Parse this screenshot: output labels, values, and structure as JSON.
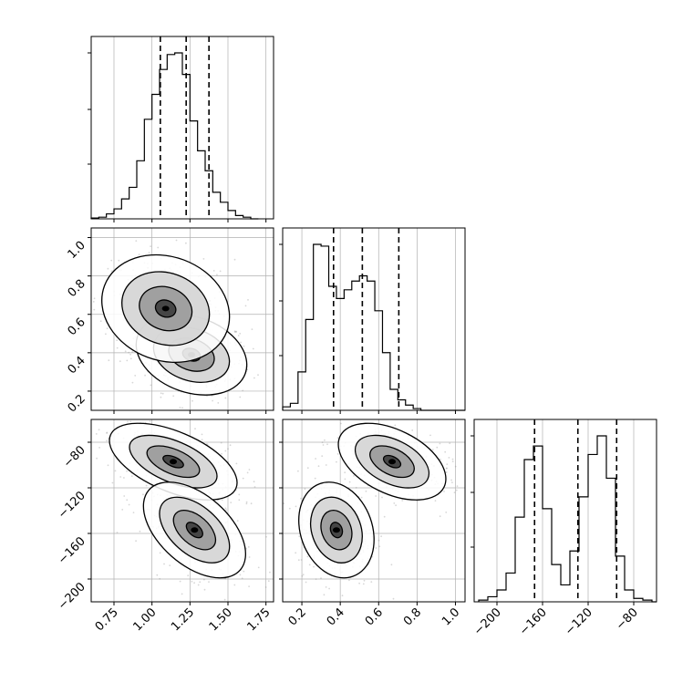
{
  "chart_data": [
    {
      "type": "histogram",
      "panel": "marginal-param1",
      "x_range": [
        0.6,
        1.8
      ],
      "bin_width": 0.05,
      "bin_start": 0.6,
      "counts": [
        0.005,
        0.01,
        0.03,
        0.06,
        0.12,
        0.19,
        0.35,
        0.6,
        0.75,
        0.9,
        0.99,
        1.0,
        0.87,
        0.59,
        0.41,
        0.29,
        0.16,
        0.1,
        0.05,
        0.02,
        0.01,
        0.0
      ],
      "quantile_lines": [
        1.055,
        1.225,
        1.375
      ]
    },
    {
      "type": "histogram",
      "panel": "marginal-param2",
      "x_range": [
        0.1,
        1.05
      ],
      "bin_width": 0.04,
      "bin_start": 0.1,
      "counts": [
        0.02,
        0.04,
        0.22,
        0.52,
        0.95,
        0.94,
        0.71,
        0.64,
        0.69,
        0.74,
        0.77,
        0.74,
        0.57,
        0.33,
        0.12,
        0.06,
        0.03,
        0.01,
        0.0,
        0.0,
        0.0,
        0.0,
        0.0,
        0.0
      ],
      "quantile_lines": [
        0.365,
        0.515,
        0.705
      ]
    },
    {
      "type": "histogram",
      "panel": "marginal-param3",
      "x_range": [
        -220,
        -60
      ],
      "bin_width": 8,
      "bin_start": -216,
      "counts": [
        0.01,
        0.03,
        0.07,
        0.17,
        0.5,
        0.84,
        0.92,
        0.55,
        0.22,
        0.1,
        0.3,
        0.62,
        0.87,
        0.98,
        0.73,
        0.27,
        0.07,
        0.02,
        0.01,
        0.0
      ],
      "quantile_lines": [
        -167,
        -129,
        -95
      ]
    },
    {
      "type": "scatter-contour",
      "panel": "joint-param1-param2",
      "x_range": [
        0.6,
        1.8
      ],
      "y_range": [
        0.1,
        1.05
      ],
      "modes": [
        {
          "cx": 1.26,
          "cy": 0.39,
          "sx": 0.13,
          "sy": 0.075,
          "rho": -0.25,
          "weight": 0.55
        },
        {
          "cx": 1.09,
          "cy": 0.63,
          "sx": 0.15,
          "sy": 0.1,
          "rho": -0.15,
          "weight": 0.45
        }
      ]
    },
    {
      "type": "scatter-contour",
      "panel": "joint-param1-param3",
      "x_range": [
        0.6,
        1.8
      ],
      "y_range": [
        -220,
        -60
      ],
      "modes": [
        {
          "cx": 1.14,
          "cy": -97,
          "sx": 0.15,
          "sy": 12,
          "rho": -0.55,
          "weight": 0.5
        },
        {
          "cx": 1.28,
          "cy": -157,
          "sx": 0.12,
          "sy": 15,
          "rho": -0.5,
          "weight": 0.5
        }
      ]
    },
    {
      "type": "scatter-contour",
      "panel": "joint-param2-param3",
      "x_range": [
        0.1,
        1.05
      ],
      "y_range": [
        -220,
        -60
      ],
      "modes": [
        {
          "cx": 0.67,
          "cy": -97,
          "sx": 0.1,
          "sy": 12,
          "rho": -0.45,
          "weight": 0.5
        },
        {
          "cx": 0.38,
          "cy": -157,
          "sx": 0.07,
          "sy": 15,
          "rho": -0.2,
          "weight": 0.5
        }
      ]
    }
  ],
  "axes": {
    "param1_ticks": [
      "0.75",
      "1.00",
      "1.25",
      "1.50",
      "1.75"
    ],
    "param2_ticks": [
      "0.2",
      "0.4",
      "0.6",
      "0.8",
      "1.0"
    ],
    "param3_ticks": [
      "−200",
      "−160",
      "−120",
      "−80"
    ]
  },
  "style": {
    "grid": true,
    "line_color": "#000000",
    "grid_color": "#b0b0b0",
    "point_color": "#8c8c8c"
  }
}
